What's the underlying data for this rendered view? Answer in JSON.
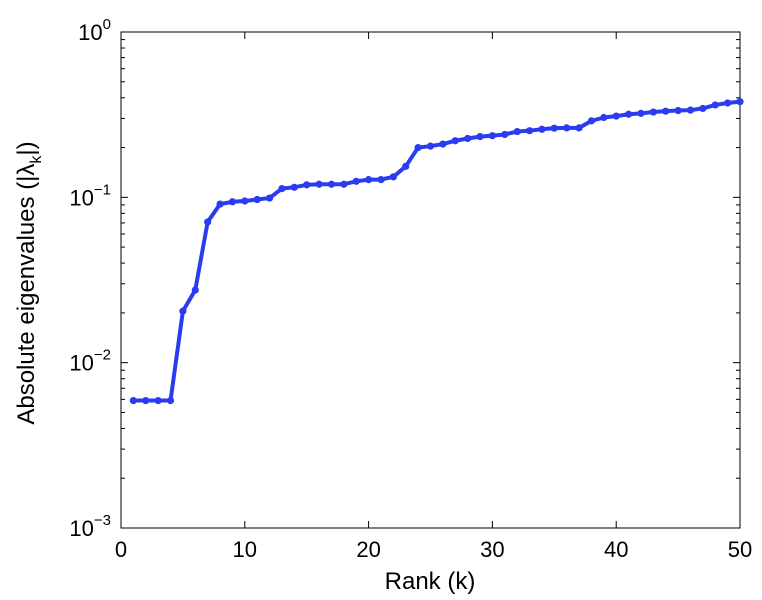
{
  "chart_data": {
    "type": "line",
    "title": "",
    "xlabel": "Rank (k)",
    "ylabel": {
      "prefix": "Absolute eigenvalues (|λ",
      "subscript": "k",
      "suffix": "|)"
    },
    "xlim": [
      0,
      50
    ],
    "ylim": [
      0.001,
      1
    ],
    "yscale": "log",
    "grid": false,
    "xticks": [
      0,
      10,
      20,
      30,
      40,
      50
    ],
    "yticks": [
      {
        "value": 0.001,
        "base": "10",
        "exp": "−3"
      },
      {
        "value": 0.01,
        "base": "10",
        "exp": "−2"
      },
      {
        "value": 0.1,
        "base": "10",
        "exp": "−1"
      },
      {
        "value": 1,
        "base": "10",
        "exp": "0"
      }
    ],
    "series": [
      {
        "color": "#2a3cf0",
        "x": [
          1,
          2,
          3,
          4,
          5,
          6,
          7,
          8,
          9,
          10,
          11,
          12,
          13,
          14,
          15,
          16,
          17,
          18,
          19,
          20,
          21,
          22,
          23,
          24,
          25,
          26,
          27,
          28,
          29,
          30,
          31,
          32,
          33,
          34,
          35,
          36,
          37,
          38,
          39,
          40,
          41,
          42,
          43,
          44,
          45,
          46,
          47,
          48,
          49,
          50
        ],
        "y": [
          0.0059,
          0.0059,
          0.0059,
          0.0059,
          0.0205,
          0.0275,
          0.071,
          0.091,
          0.094,
          0.095,
          0.097,
          0.099,
          0.113,
          0.115,
          0.119,
          0.12,
          0.12,
          0.12,
          0.125,
          0.128,
          0.128,
          0.133,
          0.154,
          0.2,
          0.204,
          0.21,
          0.22,
          0.227,
          0.233,
          0.236,
          0.24,
          0.25,
          0.253,
          0.258,
          0.262,
          0.263,
          0.263,
          0.29,
          0.304,
          0.31,
          0.318,
          0.322,
          0.328,
          0.332,
          0.335,
          0.337,
          0.345,
          0.362,
          0.372,
          0.379
        ]
      }
    ]
  }
}
